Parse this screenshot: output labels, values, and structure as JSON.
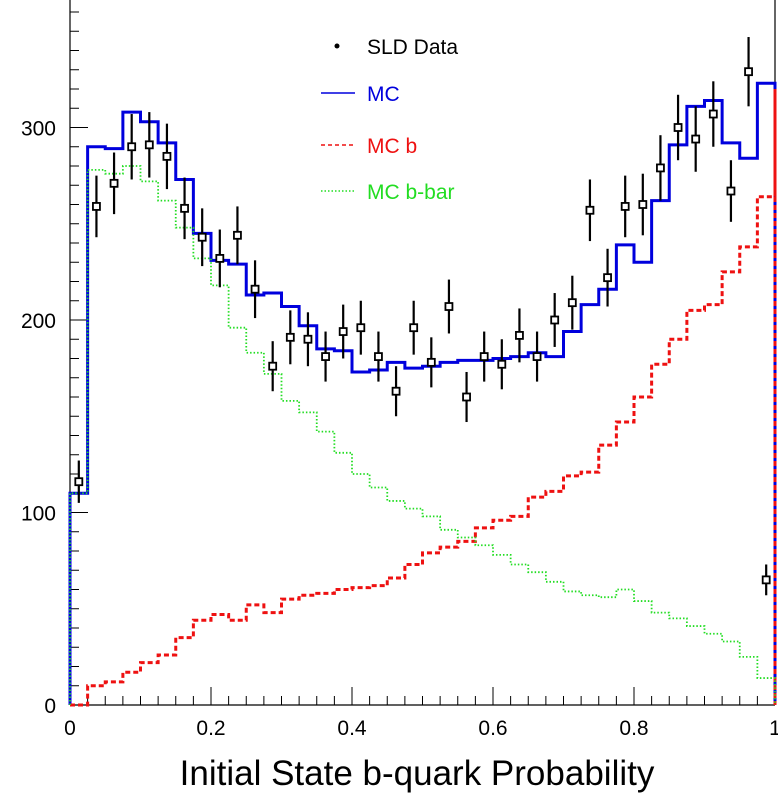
{
  "chart_data": {
    "type": "line",
    "title": "",
    "xlabel": "Initial State b-quark Probability",
    "ylabel": "",
    "xlim": [
      0,
      1
    ],
    "ylim": [
      0,
      360
    ],
    "x_ticks": [
      "0",
      "0.2",
      "0.4",
      "0.6",
      "0.8",
      "1"
    ],
    "x_tick_values": [
      0,
      0.2,
      0.4,
      0.6,
      0.8,
      1
    ],
    "y_ticks": [
      "0",
      "100",
      "200",
      "300"
    ],
    "y_tick_values": [
      0,
      100,
      200,
      300
    ],
    "bin_edges": [
      0,
      0.025,
      0.05,
      0.075,
      0.1,
      0.125,
      0.15,
      0.175,
      0.2,
      0.225,
      0.25,
      0.275,
      0.3,
      0.325,
      0.35,
      0.375,
      0.4,
      0.425,
      0.45,
      0.475,
      0.5,
      0.525,
      0.55,
      0.575,
      0.6,
      0.625,
      0.65,
      0.675,
      0.7,
      0.725,
      0.75,
      0.775,
      0.8,
      0.825,
      0.85,
      0.875,
      0.9,
      0.925,
      0.95,
      0.975,
      1.0
    ],
    "legend": [
      {
        "label": "SLD Data",
        "style": "points",
        "color": "#000000"
      },
      {
        "label": "MC",
        "style": "solid",
        "color": "#0000dd"
      },
      {
        "label": "MC b",
        "style": "dashed",
        "color": "#ee1111"
      },
      {
        "label": "MC b-bar",
        "style": "dotted",
        "color": "#22dd22"
      }
    ],
    "series": [
      {
        "name": "MC",
        "style": "solid",
        "color": "#0000dd",
        "values": [
          110,
          290,
          289,
          308,
          303,
          292,
          273,
          245,
          231,
          229,
          213,
          214,
          207,
          197,
          185,
          184,
          173,
          174,
          178,
          175,
          176,
          178,
          179,
          179,
          180,
          181,
          183,
          181,
          194,
          208,
          216,
          239,
          230,
          262,
          291,
          311,
          314,
          292,
          284,
          323,
          80
        ]
      },
      {
        "name": "MC b",
        "style": "dashed",
        "color": "#ee1111",
        "values": [
          0,
          10,
          12,
          17,
          22,
          26,
          35,
          44,
          47,
          44,
          52,
          48,
          55,
          57,
          58,
          60,
          61,
          62,
          66,
          73,
          79,
          82,
          85,
          92,
          96,
          98,
          108,
          111,
          119,
          121,
          135,
          147,
          160,
          177,
          190,
          205,
          208,
          225,
          238,
          264,
          320
        ]
      },
      {
        "name": "MC b-bar",
        "style": "dotted",
        "color": "#22dd22",
        "values": [
          110,
          278,
          276,
          280,
          272,
          262,
          248,
          232,
          218,
          196,
          183,
          172,
          158,
          152,
          142,
          131,
          120,
          113,
          106,
          102,
          98,
          91,
          87,
          83,
          78,
          73,
          69,
          64,
          59,
          57,
          56,
          60,
          54,
          48,
          45,
          41,
          37,
          33,
          25,
          14,
          0
        ]
      },
      {
        "name": "SLD Data",
        "style": "points",
        "color": "#000000",
        "x": [
          0.0125,
          0.0375,
          0.0625,
          0.0875,
          0.1125,
          0.1375,
          0.1625,
          0.1875,
          0.2125,
          0.2375,
          0.2625,
          0.2875,
          0.3125,
          0.3375,
          0.3625,
          0.3875,
          0.4125,
          0.4375,
          0.4625,
          0.4875,
          0.5125,
          0.5375,
          0.5625,
          0.5875,
          0.6125,
          0.6375,
          0.6625,
          0.6875,
          0.7125,
          0.7375,
          0.7625,
          0.7875,
          0.8125,
          0.8375,
          0.8625,
          0.8875,
          0.9125,
          0.9375,
          0.9625,
          0.9875
        ],
        "values": [
          116,
          259,
          271,
          290,
          291,
          285,
          258,
          243,
          232,
          244,
          216,
          176,
          191,
          190,
          181,
          194,
          196,
          181,
          163,
          196,
          178,
          207,
          160,
          181,
          177,
          192,
          181,
          200,
          209,
          257,
          222,
          259,
          260,
          279,
          300,
          294,
          307,
          267,
          329,
          65
        ],
        "errors": [
          11,
          16,
          16,
          17,
          17,
          17,
          16,
          15,
          15,
          15,
          15,
          13,
          14,
          14,
          13,
          14,
          14,
          13,
          13,
          14,
          13,
          14,
          13,
          13,
          13,
          14,
          13,
          14,
          14,
          16,
          15,
          16,
          16,
          17,
          17,
          17,
          17,
          16,
          18,
          8
        ]
      }
    ]
  }
}
